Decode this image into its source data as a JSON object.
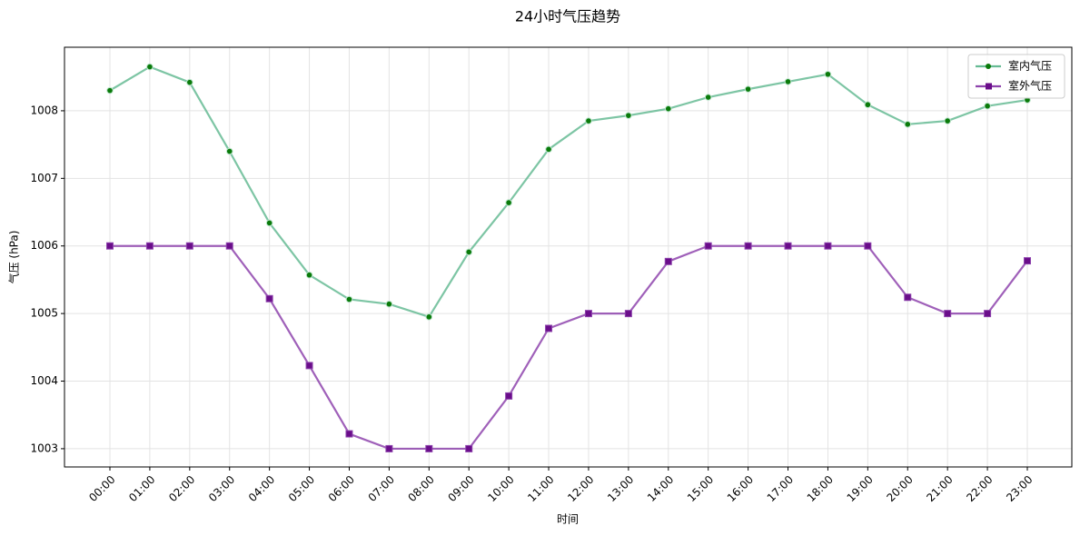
{
  "chart_data": {
    "type": "line",
    "title": "24小时气压趋势",
    "x_label": "时间",
    "y_label": "气压 (hPa)",
    "categories": [
      "00:00",
      "01:00",
      "02:00",
      "03:00",
      "04:00",
      "05:00",
      "06:00",
      "07:00",
      "08:00",
      "09:00",
      "10:00",
      "11:00",
      "12:00",
      "13:00",
      "14:00",
      "15:00",
      "16:00",
      "17:00",
      "18:00",
      "19:00",
      "20:00",
      "21:00",
      "22:00",
      "23:00"
    ],
    "series": [
      {
        "name": "室内气压",
        "color": "#66bb94",
        "marker_color": "#0a7a0a",
        "marker": "circle",
        "values": [
          1008.3,
          1008.65,
          1008.42,
          1007.4,
          1006.34,
          1005.57,
          1005.21,
          1005.14,
          1004.95,
          1005.91,
          1006.64,
          1007.43,
          1007.85,
          1007.93,
          1008.03,
          1008.2,
          1008.32,
          1008.43,
          1008.54,
          1008.09,
          1007.8,
          1007.85,
          1008.07,
          1008.16
        ]
      },
      {
        "name": "室外气压",
        "color": "#8e44ad",
        "marker_color": "#6a0d8a",
        "marker": "square",
        "values": [
          1006,
          1006,
          1006,
          1006,
          1005.22,
          1004.23,
          1003.22,
          1003,
          1003,
          1003,
          1003.78,
          1004.78,
          1005,
          1005,
          1005.77,
          1006,
          1006,
          1006,
          1006,
          1006,
          1005.24,
          1005,
          1005,
          1005.78
        ]
      }
    ],
    "ylim": [
      1002.73,
      1008.94
    ],
    "yticks": [
      1003,
      1004,
      1005,
      1006,
      1007,
      1008
    ],
    "grid": true,
    "legend": "upper-right"
  }
}
